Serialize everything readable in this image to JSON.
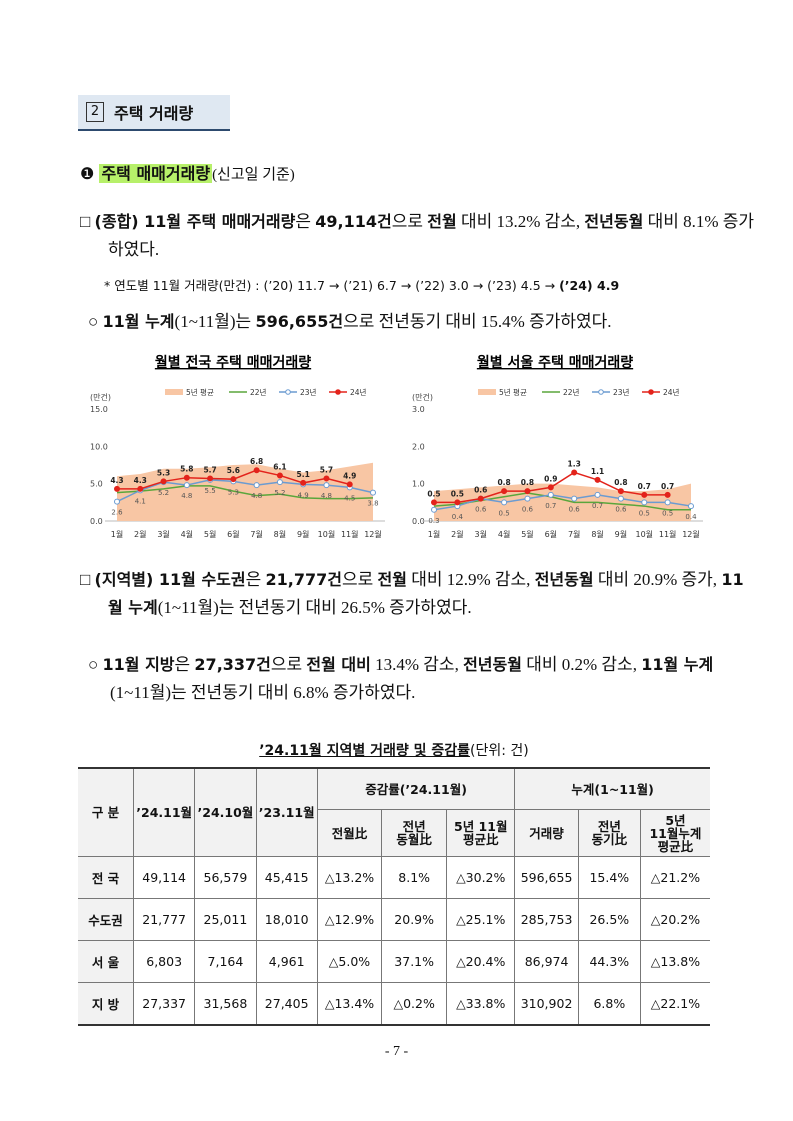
{
  "section": {
    "number": "2",
    "title": "주택 거래량"
  },
  "subheading": {
    "bullet": "❶",
    "title": "주택 매매거래량",
    "note": "(신고일 기준)"
  },
  "paragraphs": [
    {
      "runs": [
        {
          "text": "□ "
        },
        {
          "text": "(종합) 11월 주택 매매거래량",
          "bold": true
        },
        {
          "text": "은 "
        },
        {
          "text": "49,114건",
          "bold": true
        },
        {
          "text": "으로 "
        },
        {
          "text": "전월",
          "bold": true
        },
        {
          "text": " 대비 13.2% 감소, "
        },
        {
          "text": "전년동월",
          "bold": true
        },
        {
          "text": " 대비 8.1% 증가하였다."
        }
      ]
    },
    {
      "runs": [
        {
          "text": "* 연도별 11월 거래량(만건) : (’20) 11.7 → (’21) 6.7 → (’22) 3.0 → (’23) 4.5 → "
        },
        {
          "text": "(’24) 4.9",
          "bold": true
        }
      ]
    },
    {
      "runs": [
        {
          "text": "○ "
        },
        {
          "text": "11월 누계",
          "bold": true
        },
        {
          "text": "(1~11월)는 "
        },
        {
          "text": "596,655건",
          "bold": true
        },
        {
          "text": "으로 전년동기 대비 15.4% 증가하였다."
        }
      ]
    },
    {
      "runs": [
        {
          "text": "□ "
        },
        {
          "text": "(지역별) 11월 수도권",
          "bold": true
        },
        {
          "text": "은 "
        },
        {
          "text": "21,777건",
          "bold": true
        },
        {
          "text": "으로 "
        },
        {
          "text": "전월",
          "bold": true
        },
        {
          "text": " 대비 12.9% 감소, "
        },
        {
          "text": "전년동월",
          "bold": true
        },
        {
          "text": " 대비 20.9% 증가, "
        },
        {
          "text": "11월 누계",
          "bold": true
        },
        {
          "text": "(1~11월)는 전년동기 대비 26.5% 증가하였다."
        }
      ]
    },
    {
      "runs": [
        {
          "text": "○ "
        },
        {
          "text": "11월 지방",
          "bold": true
        },
        {
          "text": "은 "
        },
        {
          "text": "27,337건",
          "bold": true
        },
        {
          "text": "으로 "
        },
        {
          "text": "전월 대비",
          "bold": true
        },
        {
          "text": " 13.4% 감소, "
        },
        {
          "text": "전년동월",
          "bold": true
        },
        {
          "text": " 대비 0.2% 감소, "
        },
        {
          "text": "11월 누계",
          "bold": true
        },
        {
          "text": "(1~11월)는 전년동기 대비 6.8% 증가하였다."
        }
      ]
    }
  ],
  "chart_data": [
    {
      "type": "line",
      "title": "월별 전국 주택 매매거래량",
      "y_label": "(만건)",
      "categories": [
        "1월",
        "2월",
        "3월",
        "4월",
        "5월",
        "6월",
        "7월",
        "8월",
        "9월",
        "10월",
        "11월",
        "12월"
      ],
      "ylim": [
        0,
        15
      ],
      "yticks": [
        {
          "value": 0,
          "label": "0.0"
        },
        {
          "value": 5,
          "label": "5.0"
        },
        {
          "value": 10,
          "label": "10.0"
        },
        {
          "value": 15,
          "label": "15.0"
        }
      ],
      "series": [
        {
          "name": "5년 평균",
          "style": "area",
          "color": "#f8c6a4",
          "values": [
            6.0,
            6.3,
            7.0,
            7.0,
            7.2,
            7.5,
            7.6,
            7.0,
            6.5,
            6.8,
            7.3,
            7.8
          ]
        },
        {
          "name": "22년",
          "color": "#5aa63c",
          "values": [
            3.8,
            4.0,
            4.3,
            4.7,
            4.7,
            4.0,
            3.4,
            3.6,
            3.1,
            3.0,
            3.0,
            3.1
          ]
        },
        {
          "name": "23년",
          "color": "#6b9bd1",
          "marker": "hollow",
          "label_position": "below",
          "values": [
            2.6,
            4.1,
            5.2,
            4.8,
            5.5,
            5.3,
            4.8,
            5.2,
            4.9,
            4.8,
            4.5,
            3.8
          ]
        },
        {
          "name": "24년",
          "color": "#e3231b",
          "marker": "filled",
          "label_position": "above",
          "values": [
            4.3,
            4.3,
            5.3,
            5.8,
            5.7,
            5.6,
            6.8,
            6.1,
            5.1,
            5.7,
            4.9,
            null
          ]
        }
      ]
    },
    {
      "type": "line",
      "title": "월별 서울 주택 매매거래량",
      "y_label": "(만건)",
      "categories": [
        "1월",
        "2월",
        "3월",
        "4월",
        "5월",
        "6월",
        "7월",
        "8월",
        "9월",
        "10월",
        "11월",
        "12월"
      ],
      "ylim": [
        0,
        3
      ],
      "yticks": [
        {
          "value": 0,
          "label": "0.0"
        },
        {
          "value": 1,
          "label": "1.0"
        },
        {
          "value": 2,
          "label": "2.0"
        },
        {
          "value": 3,
          "label": "3.0"
        }
      ],
      "series": [
        {
          "name": "5년 평균",
          "style": "area",
          "color": "#f8c6a4",
          "values": [
            0.8,
            0.85,
            0.9,
            0.95,
            1.0,
            1.0,
            0.95,
            0.9,
            0.8,
            0.8,
            0.85,
            1.0
          ]
        },
        {
          "name": "22년",
          "color": "#5aa63c",
          "values": [
            0.4,
            0.45,
            0.55,
            0.65,
            0.75,
            0.65,
            0.5,
            0.5,
            0.45,
            0.4,
            0.3,
            0.3
          ]
        },
        {
          "name": "23년",
          "color": "#6b9bd1",
          "marker": "hollow",
          "label_position": "below",
          "values": [
            0.3,
            0.4,
            0.6,
            0.5,
            0.6,
            0.7,
            0.6,
            0.7,
            0.6,
            0.5,
            0.5,
            0.4
          ]
        },
        {
          "name": "24년",
          "color": "#e3231b",
          "marker": "filled",
          "label_position": "above",
          "values": [
            0.5,
            0.5,
            0.6,
            0.8,
            0.8,
            0.9,
            1.3,
            1.1,
            0.8,
            0.7,
            0.7,
            null
          ]
        }
      ]
    }
  ],
  "table": {
    "title": "’24.11월 지역별 거래량 및 증감률",
    "unit": "(단위: 건)",
    "header": {
      "top": [
        "구 분",
        "’24.11월",
        "’24.10월",
        "’23.11월",
        "증감률(’24.11월)",
        "누계(1~11월)"
      ],
      "sub": [
        "전월比",
        "전년\n동월比",
        "5년 11월\n평균比",
        "거래량",
        "전년\n동기比",
        "5년\n11월누계\n평균比"
      ]
    },
    "rows": [
      [
        "전 국",
        "49,114",
        "56,579",
        "45,415",
        "△13.2%",
        "8.1%",
        "△30.2%",
        "596,655",
        "15.4%",
        "△21.2%"
      ],
      [
        "수도권",
        "21,777",
        "25,011",
        "18,010",
        "△12.9%",
        "20.9%",
        "△25.1%",
        "285,753",
        "26.5%",
        "△20.2%"
      ],
      [
        "서 울",
        "6,803",
        "7,164",
        "4,961",
        "△5.0%",
        "37.1%",
        "△20.4%",
        "86,974",
        "44.3%",
        "△13.8%"
      ],
      [
        "지 방",
        "27,337",
        "31,568",
        "27,405",
        "△13.4%",
        "△0.2%",
        "△33.8%",
        "310,902",
        "6.8%",
        "△22.1%"
      ]
    ]
  },
  "footer": "- 7 -"
}
